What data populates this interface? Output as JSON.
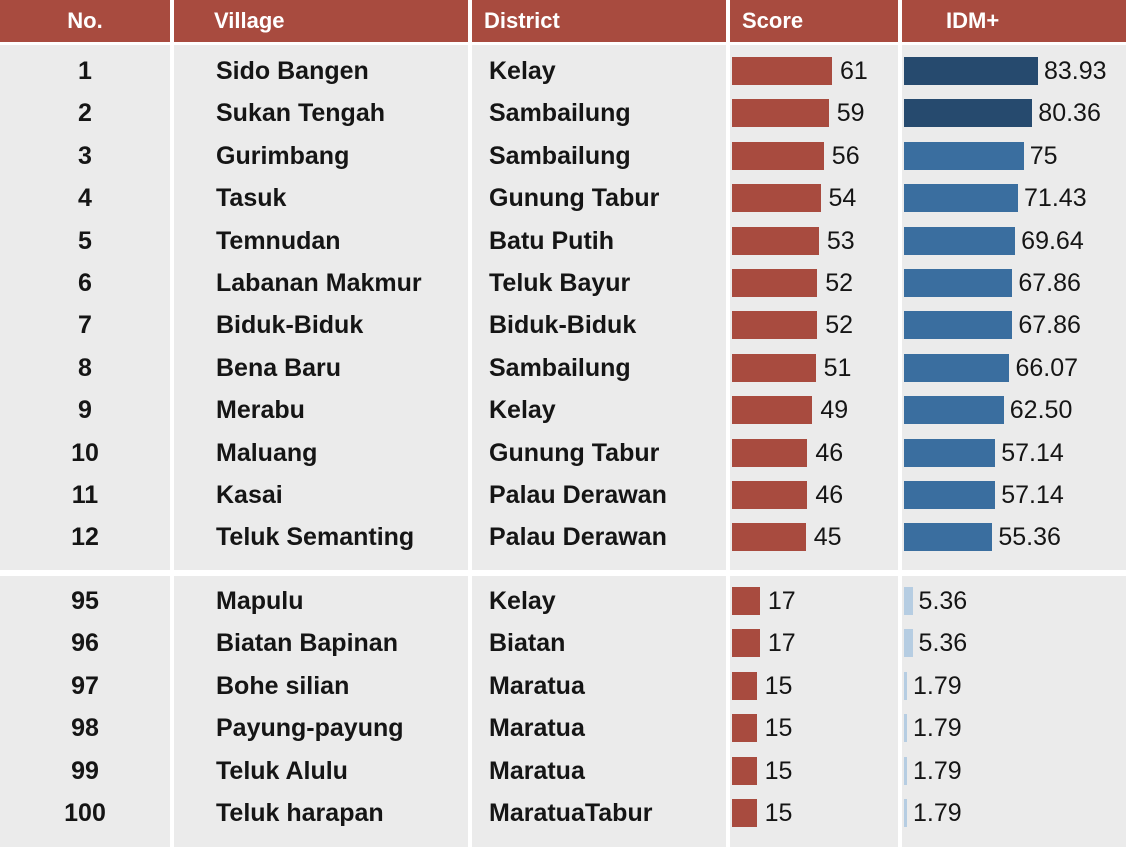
{
  "headers": {
    "no": "No.",
    "village": "Village",
    "district": "District",
    "score": "Score",
    "idm": "IDM+"
  },
  "colors": {
    "header_bg": "#a84b3f",
    "score_bar": "#a84b3f",
    "idm_dark": "#264a6e",
    "idm_mid": "#3a6e9f",
    "idm_light": "#b6cde2",
    "panel_bg": "#ebebeb"
  },
  "chart_data": {
    "type": "table",
    "columns": [
      "No.",
      "Village",
      "District",
      "Score",
      "IDM+"
    ],
    "rows_top": [
      {
        "no": "1",
        "village": "Sido Bangen",
        "district": "Kelay",
        "score": 61,
        "score_label": "61",
        "idm": 83.93,
        "idm_label": "83.93",
        "idm_tone": "dark"
      },
      {
        "no": "2",
        "village": "Sukan Tengah",
        "district": "Sambailung",
        "score": 59,
        "score_label": "59",
        "idm": 80.36,
        "idm_label": "80.36",
        "idm_tone": "dark"
      },
      {
        "no": "3",
        "village": "Gurimbang",
        "district": "Sambailung",
        "score": 56,
        "score_label": "56",
        "idm": 75,
        "idm_label": "75",
        "idm_tone": "mid"
      },
      {
        "no": "4",
        "village": "Tasuk",
        "district": "Gunung Tabur",
        "score": 54,
        "score_label": "54",
        "idm": 71.43,
        "idm_label": "71.43",
        "idm_tone": "mid"
      },
      {
        "no": "5",
        "village": "Temnudan",
        "district": "Batu Putih",
        "score": 53,
        "score_label": "53",
        "idm": 69.64,
        "idm_label": "69.64",
        "idm_tone": "mid"
      },
      {
        "no": "6",
        "village": "Labanan Makmur",
        "district": "Teluk Bayur",
        "score": 52,
        "score_label": "52",
        "idm": 67.86,
        "idm_label": "67.86",
        "idm_tone": "mid"
      },
      {
        "no": "7",
        "village": "Biduk-Biduk",
        "district": "Biduk-Biduk",
        "score": 52,
        "score_label": "52",
        "idm": 67.86,
        "idm_label": "67.86",
        "idm_tone": "mid"
      },
      {
        "no": "8",
        "village": "Bena Baru",
        "district": "Sambailung",
        "score": 51,
        "score_label": "51",
        "idm": 66.07,
        "idm_label": "66.07",
        "idm_tone": "mid"
      },
      {
        "no": "9",
        "village": "Merabu",
        "district": "Kelay",
        "score": 49,
        "score_label": "49",
        "idm": 62.5,
        "idm_label": "62.50",
        "idm_tone": "mid"
      },
      {
        "no": "10",
        "village": "Maluang",
        "district": "Gunung Tabur",
        "score": 46,
        "score_label": "46",
        "idm": 57.14,
        "idm_label": "57.14",
        "idm_tone": "mid"
      },
      {
        "no": "11",
        "village": "Kasai",
        "district": "Palau Derawan",
        "score": 46,
        "score_label": "46",
        "idm": 57.14,
        "idm_label": "57.14",
        "idm_tone": "mid"
      },
      {
        "no": "12",
        "village": "Teluk Semanting",
        "district": "Palau Derawan",
        "score": 45,
        "score_label": "45",
        "idm": 55.36,
        "idm_label": "55.36",
        "idm_tone": "mid"
      }
    ],
    "rows_bottom": [
      {
        "no": "95",
        "village": "Mapulu",
        "district": "Kelay",
        "score": 17,
        "score_label": "17",
        "idm": 5.36,
        "idm_label": "5.36",
        "idm_tone": "light"
      },
      {
        "no": "96",
        "village": "Biatan Bapinan",
        "district": "Biatan",
        "score": 17,
        "score_label": "17",
        "idm": 5.36,
        "idm_label": "5.36",
        "idm_tone": "light"
      },
      {
        "no": "97",
        "village": "Bohe silian",
        "district": "Maratua",
        "score": 15,
        "score_label": "15",
        "idm": 1.79,
        "idm_label": "1.79",
        "idm_tone": "light"
      },
      {
        "no": "98",
        "village": "Payung-payung",
        "district": "Maratua",
        "score": 15,
        "score_label": "15",
        "idm": 1.79,
        "idm_label": "1.79",
        "idm_tone": "light"
      },
      {
        "no": "99",
        "village": "Teluk Alulu",
        "district": "Maratua",
        "score": 15,
        "score_label": "15",
        "idm": 1.79,
        "idm_label": "1.79",
        "idm_tone": "light"
      },
      {
        "no": "100",
        "village": "Teluk harapan",
        "district": "MaratuaTabur",
        "score": 15,
        "score_label": "15",
        "idm": 1.79,
        "idm_label": "1.79",
        "idm_tone": "light"
      }
    ]
  }
}
